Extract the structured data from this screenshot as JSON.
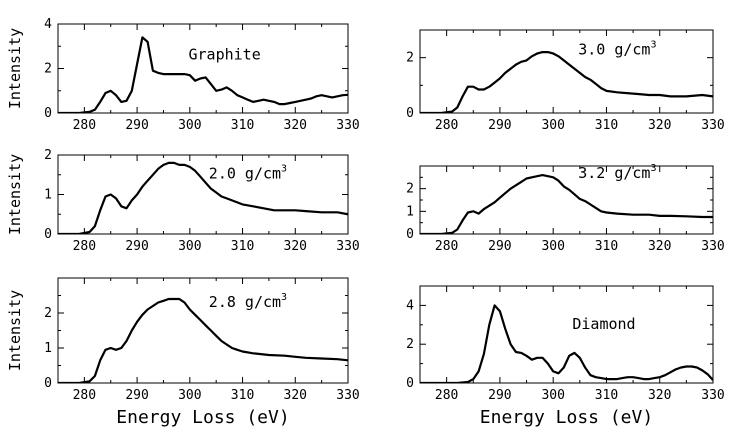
{
  "chart_data": [
    {
      "type": "line",
      "label": "Graphite",
      "xlabel": "",
      "ylabel": "Intensity",
      "xlim": [
        275,
        330
      ],
      "ylim": [
        0,
        4
      ],
      "xticks": [
        280,
        290,
        300,
        310,
        320,
        330
      ],
      "yticks": [
        0,
        2,
        4
      ],
      "x": [
        275,
        279,
        281,
        282,
        283,
        284,
        285,
        286,
        287,
        288,
        289,
        290,
        291,
        292,
        293,
        294,
        295,
        296,
        297,
        298,
        299,
        300,
        301,
        302,
        303,
        304,
        305,
        306,
        307,
        308,
        309,
        310,
        311,
        312,
        313,
        314,
        315,
        316,
        317,
        318,
        319,
        320,
        321,
        322,
        323,
        324,
        325,
        326,
        327,
        328,
        329,
        330
      ],
      "y": [
        0,
        0,
        0.05,
        0.15,
        0.5,
        0.9,
        1.0,
        0.8,
        0.5,
        0.55,
        1.0,
        2.2,
        3.4,
        3.2,
        1.9,
        1.8,
        1.75,
        1.75,
        1.75,
        1.75,
        1.75,
        1.7,
        1.45,
        1.55,
        1.6,
        1.3,
        1.0,
        1.05,
        1.15,
        1.0,
        0.8,
        0.7,
        0.6,
        0.5,
        0.55,
        0.6,
        0.55,
        0.5,
        0.4,
        0.4,
        0.45,
        0.5,
        0.55,
        0.6,
        0.65,
        0.75,
        0.8,
        0.75,
        0.7,
        0.75,
        0.8,
        0.82
      ]
    },
    {
      "type": "line",
      "label": "3.0 g/cm",
      "label_sup": "3",
      "xlabel": "",
      "ylabel": "",
      "xlim": [
        275,
        330
      ],
      "ylim": [
        0,
        3
      ],
      "xticks": [
        280,
        290,
        300,
        310,
        320,
        330
      ],
      "yticks": [
        0,
        2
      ],
      "x": [
        275,
        279,
        281,
        282,
        283,
        284,
        285,
        286,
        287,
        288,
        289,
        290,
        291,
        292,
        293,
        294,
        295,
        296,
        297,
        298,
        299,
        300,
        301,
        302,
        303,
        304,
        305,
        306,
        307,
        308,
        309,
        310,
        312,
        315,
        318,
        320,
        322,
        325,
        328,
        330
      ],
      "y": [
        0,
        0,
        0.05,
        0.2,
        0.6,
        0.95,
        0.95,
        0.85,
        0.85,
        0.95,
        1.1,
        1.25,
        1.45,
        1.6,
        1.75,
        1.85,
        1.9,
        2.05,
        2.15,
        2.2,
        2.2,
        2.15,
        2.05,
        1.9,
        1.75,
        1.6,
        1.45,
        1.3,
        1.2,
        1.05,
        0.9,
        0.8,
        0.75,
        0.7,
        0.65,
        0.65,
        0.6,
        0.6,
        0.65,
        0.6
      ]
    },
    {
      "type": "line",
      "label": "2.0 g/cm",
      "label_sup": "3",
      "xlabel": "",
      "ylabel": "Intensity",
      "xlim": [
        275,
        330
      ],
      "ylim": [
        0,
        2
      ],
      "xticks": [
        280,
        290,
        300,
        310,
        320,
        330
      ],
      "yticks": [
        0,
        1,
        2
      ],
      "x": [
        275,
        279,
        281,
        282,
        283,
        284,
        285,
        286,
        287,
        288,
        289,
        290,
        291,
        292,
        293,
        294,
        295,
        296,
        297,
        298,
        299,
        300,
        301,
        302,
        303,
        304,
        305,
        306,
        307,
        308,
        309,
        310,
        312,
        314,
        316,
        318,
        320,
        322,
        325,
        328,
        330
      ],
      "y": [
        0,
        0,
        0.05,
        0.2,
        0.6,
        0.95,
        1.0,
        0.9,
        0.7,
        0.65,
        0.85,
        1.0,
        1.2,
        1.35,
        1.5,
        1.65,
        1.75,
        1.8,
        1.8,
        1.75,
        1.75,
        1.7,
        1.6,
        1.45,
        1.3,
        1.15,
        1.05,
        0.95,
        0.9,
        0.85,
        0.8,
        0.75,
        0.7,
        0.65,
        0.6,
        0.6,
        0.6,
        0.58,
        0.55,
        0.55,
        0.5
      ]
    },
    {
      "type": "line",
      "label": "3.2 g/cm",
      "label_sup": "3",
      "xlabel": "",
      "ylabel": "",
      "xlim": [
        275,
        330
      ],
      "ylim": [
        0,
        3
      ],
      "xticks": [
        280,
        290,
        300,
        310,
        320,
        330
      ],
      "yticks": [
        0,
        1,
        2
      ],
      "x": [
        275,
        279,
        281,
        282,
        283,
        284,
        285,
        286,
        287,
        288,
        289,
        290,
        291,
        292,
        293,
        294,
        295,
        296,
        297,
        298,
        299,
        300,
        301,
        302,
        303,
        304,
        305,
        306,
        307,
        308,
        309,
        310,
        312,
        315,
        318,
        320,
        322,
        325,
        328,
        330
      ],
      "y": [
        0,
        0,
        0.05,
        0.2,
        0.6,
        0.95,
        1.0,
        0.9,
        1.1,
        1.25,
        1.4,
        1.6,
        1.8,
        2.0,
        2.15,
        2.3,
        2.45,
        2.5,
        2.55,
        2.6,
        2.55,
        2.5,
        2.35,
        2.1,
        1.95,
        1.75,
        1.55,
        1.45,
        1.3,
        1.15,
        1.0,
        0.95,
        0.9,
        0.85,
        0.85,
        0.8,
        0.8,
        0.78,
        0.75,
        0.75
      ]
    },
    {
      "type": "line",
      "label": "2.8 g/cm",
      "label_sup": "3",
      "xlabel": "Energy Loss (eV)",
      "ylabel": "Intensity",
      "xlim": [
        275,
        330
      ],
      "ylim": [
        0,
        3
      ],
      "xticks": [
        280,
        290,
        300,
        310,
        320,
        330
      ],
      "yticks": [
        0,
        1,
        2
      ],
      "x": [
        275,
        279,
        281,
        282,
        283,
        284,
        285,
        286,
        287,
        288,
        289,
        290,
        291,
        292,
        293,
        294,
        295,
        296,
        297,
        298,
        299,
        300,
        301,
        302,
        303,
        304,
        305,
        306,
        307,
        308,
        309,
        310,
        312,
        315,
        318,
        320,
        322,
        325,
        328,
        330
      ],
      "y": [
        0,
        0,
        0.05,
        0.2,
        0.65,
        0.95,
        1.0,
        0.95,
        1.0,
        1.2,
        1.5,
        1.75,
        1.95,
        2.1,
        2.2,
        2.3,
        2.35,
        2.4,
        2.4,
        2.4,
        2.3,
        2.1,
        1.95,
        1.8,
        1.65,
        1.5,
        1.35,
        1.2,
        1.1,
        1.0,
        0.95,
        0.9,
        0.85,
        0.8,
        0.78,
        0.75,
        0.72,
        0.7,
        0.68,
        0.65
      ]
    },
    {
      "type": "line",
      "label": "Diamond",
      "xlabel": "Energy Loss (eV)",
      "ylabel": "",
      "xlim": [
        275,
        330
      ],
      "ylim": [
        0,
        5
      ],
      "xticks": [
        280,
        290,
        300,
        310,
        320,
        330
      ],
      "yticks": [
        0,
        2,
        4
      ],
      "x": [
        275,
        282,
        284,
        285,
        286,
        287,
        288,
        289,
        290,
        291,
        292,
        293,
        294,
        295,
        296,
        297,
        298,
        299,
        300,
        301,
        302,
        303,
        304,
        305,
        306,
        307,
        308,
        309,
        310,
        311,
        312,
        313,
        314,
        315,
        316,
        317,
        318,
        319,
        320,
        321,
        322,
        323,
        324,
        325,
        326,
        327,
        328,
        329,
        330
      ],
      "y": [
        0,
        0,
        0.05,
        0.2,
        0.6,
        1.5,
        3.0,
        4.0,
        3.7,
        2.8,
        2.0,
        1.6,
        1.55,
        1.4,
        1.2,
        1.3,
        1.3,
        1.0,
        0.6,
        0.5,
        0.8,
        1.4,
        1.55,
        1.3,
        0.8,
        0.4,
        0.3,
        0.25,
        0.2,
        0.2,
        0.2,
        0.25,
        0.3,
        0.3,
        0.25,
        0.2,
        0.2,
        0.25,
        0.3,
        0.4,
        0.55,
        0.7,
        0.8,
        0.85,
        0.85,
        0.8,
        0.65,
        0.45,
        0.15
      ]
    }
  ]
}
